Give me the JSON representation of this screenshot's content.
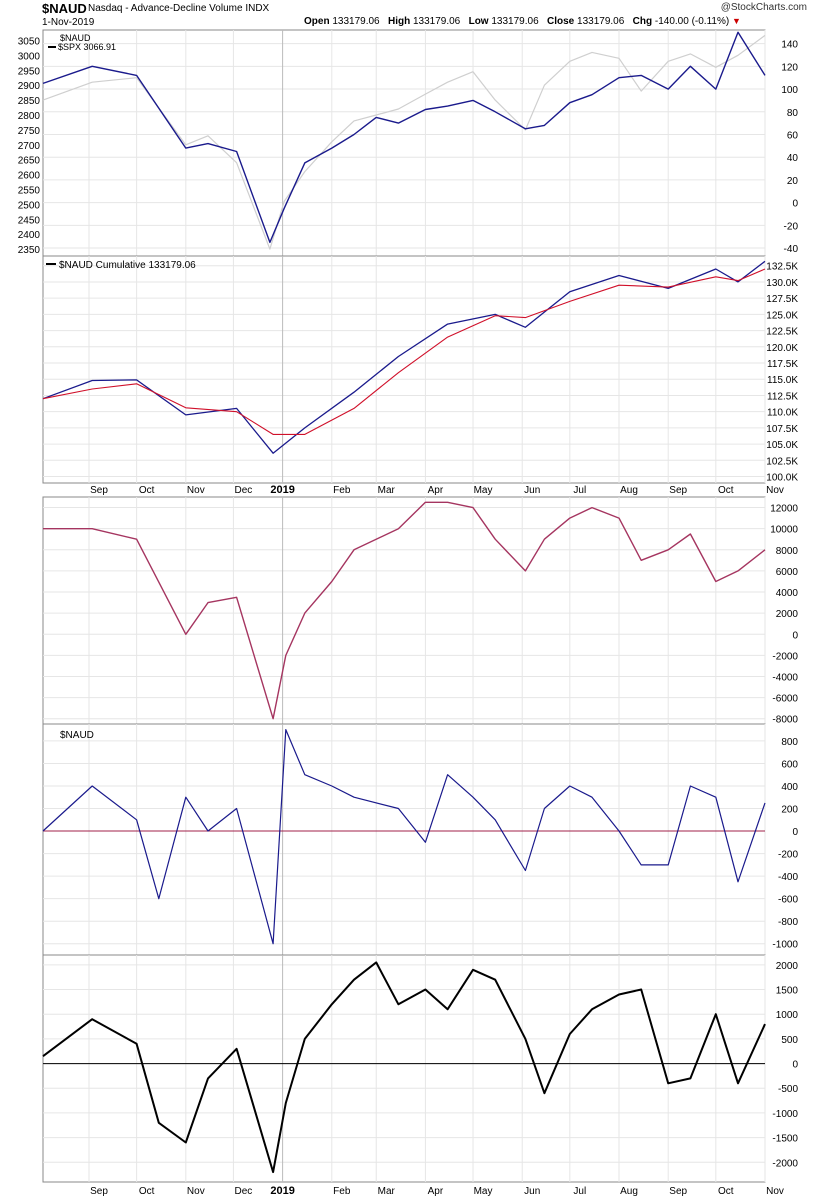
{
  "header": {
    "symbol": "$NAUD",
    "name": "Nasdaq - Advance-Decline Volume",
    "exchange": "INDX",
    "date": "1-Nov-2019",
    "open_label": "Open",
    "open_value": "133179.06",
    "high_label": "High",
    "high_value": "133179.06",
    "low_label": "Low",
    "low_value": "133179.06",
    "close_label": "Close",
    "close_value": "133179.06",
    "chg_label": "Chg",
    "chg_value": "-140.00 (-0.11%)",
    "brand": "@StockCharts.com"
  },
  "colors": {
    "navy": "#1a1a8c",
    "spx_gray": "#cfcfcf",
    "ma_red": "#d0102a",
    "maroon": "#a53560",
    "zero_line": "#a0204a",
    "black": "#000000",
    "grid": "#e6e6e6"
  },
  "x_axis": {
    "labels": [
      "Sep",
      "Oct",
      "Nov",
      "Dec",
      "2019",
      "Feb",
      "Mar",
      "Apr",
      "May",
      "Jun",
      "Jul",
      "Aug",
      "Sep",
      "Oct",
      "Nov"
    ],
    "bold_index": 4
  },
  "chart_data": [
    {
      "type": "line",
      "legend": [
        "$NAUD",
        "$SPX 3066.91"
      ],
      "x": [
        "2018-08-03",
        "2018-09-03",
        "2018-10-01",
        "2018-11-01",
        "2018-11-15",
        "2018-12-03",
        "2018-12-24",
        "2019-01-02",
        "2019-01-15",
        "2019-02-01",
        "2019-02-15",
        "2019-03-01",
        "2019-03-15",
        "2019-04-01",
        "2019-04-15",
        "2019-05-01",
        "2019-05-15",
        "2019-06-03",
        "2019-06-15",
        "2019-07-01",
        "2019-07-15",
        "2019-08-01",
        "2019-08-15",
        "2019-09-01",
        "2019-09-15",
        "2019-10-01",
        "2019-10-15",
        "2019-11-01"
      ],
      "series": [
        {
          "name": "$NAUD",
          "axis": "right",
          "values": [
            105,
            120,
            112,
            48,
            52,
            45,
            -35,
            -5,
            35,
            48,
            60,
            75,
            70,
            82,
            85,
            90,
            80,
            65,
            68,
            88,
            95,
            110,
            112,
            100,
            120,
            100,
            150,
            112
          ]
        },
        {
          "name": "$SPX 3066.91",
          "axis": "left",
          "values": [
            2850,
            2910,
            2925,
            2700,
            2730,
            2640,
            2350,
            2510,
            2610,
            2710,
            2780,
            2800,
            2820,
            2870,
            2910,
            2945,
            2850,
            2750,
            2900,
            2980,
            3010,
            2990,
            2880,
            2980,
            3005,
            2960,
            3000,
            3067
          ]
        }
      ],
      "y_left": {
        "ticks": [
          2350,
          2400,
          2450,
          2500,
          2550,
          2600,
          2650,
          2700,
          2750,
          2800,
          2850,
          2900,
          2950,
          3000,
          3050
        ]
      },
      "y_right": {
        "ticks": [
          -40,
          -20,
          0,
          20,
          40,
          60,
          80,
          100,
          120,
          140
        ]
      }
    },
    {
      "type": "line",
      "legend": [
        "$NAUD Cumulative 133179.06"
      ],
      "x": [
        "2018-08-03",
        "2018-09-03",
        "2018-10-01",
        "2018-11-01",
        "2018-12-03",
        "2018-12-26",
        "2019-01-15",
        "2019-02-15",
        "2019-03-15",
        "2019-04-15",
        "2019-05-15",
        "2019-06-03",
        "2019-07-01",
        "2019-08-01",
        "2019-09-01",
        "2019-10-01",
        "2019-10-15",
        "2019-11-01"
      ],
      "series": [
        {
          "name": "$NAUD Cumulative",
          "values": [
            112000,
            114800,
            114900,
            109500,
            110500,
            103600,
            107500,
            113000,
            118500,
            123500,
            125000,
            123000,
            128500,
            131000,
            129000,
            132000,
            130000,
            133179
          ]
        },
        {
          "name": "moving average",
          "values": [
            112000,
            113500,
            114300,
            110600,
            110000,
            106500,
            106500,
            110500,
            116000,
            121500,
            124800,
            124500,
            127000,
            129500,
            129200,
            130800,
            130200,
            132000
          ]
        }
      ],
      "y_right": {
        "ticks": [
          "100.0K",
          "102.5K",
          "105.0K",
          "107.5K",
          "110.0K",
          "112.5K",
          "115.0K",
          "117.5K",
          "120.0K",
          "122.5K",
          "125.0K",
          "127.5K",
          "130.0K",
          "132.5K"
        ]
      }
    },
    {
      "type": "line",
      "x": [
        "2018-08-03",
        "2018-09-03",
        "2018-10-01",
        "2018-11-01",
        "2018-11-15",
        "2018-12-03",
        "2018-12-26",
        "2019-01-03",
        "2019-01-15",
        "2019-02-01",
        "2019-02-15",
        "2019-03-15",
        "2019-04-01",
        "2019-04-15",
        "2019-05-01",
        "2019-05-15",
        "2019-06-03",
        "2019-06-15",
        "2019-07-01",
        "2019-07-15",
        "2019-08-01",
        "2019-08-15",
        "2019-09-01",
        "2019-09-15",
        "2019-10-01",
        "2019-10-15",
        "2019-11-01"
      ],
      "series": [
        {
          "name": "values",
          "values": [
            10000,
            10000,
            9000,
            0,
            3000,
            3500,
            -8000,
            -2000,
            2000,
            5000,
            8000,
            10000,
            12500,
            12500,
            12000,
            9000,
            6000,
            9000,
            11000,
            12000,
            11000,
            7000,
            8000,
            9500,
            5000,
            6000,
            8000
          ]
        }
      ],
      "y_right": {
        "ticks": [
          -8000,
          -6000,
          -4000,
          -2000,
          0,
          2000,
          4000,
          6000,
          8000,
          10000,
          12000
        ]
      }
    },
    {
      "type": "line",
      "legend": [
        "$NAUD"
      ],
      "x": [
        "2018-08-03",
        "2018-09-03",
        "2018-10-01",
        "2018-10-15",
        "2018-11-01",
        "2018-11-15",
        "2018-12-03",
        "2018-12-26",
        "2019-01-03",
        "2019-01-15",
        "2019-02-01",
        "2019-02-15",
        "2019-03-15",
        "2019-04-01",
        "2019-04-15",
        "2019-05-01",
        "2019-05-15",
        "2019-06-03",
        "2019-06-15",
        "2019-07-01",
        "2019-07-15",
        "2019-08-01",
        "2019-08-15",
        "2019-09-01",
        "2019-09-15",
        "2019-10-01",
        "2019-10-15",
        "2019-11-01"
      ],
      "series": [
        {
          "name": "$NAUD",
          "values": [
            0,
            400,
            100,
            -600,
            300,
            0,
            200,
            -1000,
            900,
            500,
            400,
            300,
            200,
            -100,
            500,
            300,
            100,
            -350,
            200,
            400,
            300,
            0,
            -300,
            -300,
            400,
            300,
            -450,
            250
          ]
        }
      ],
      "reference_line": 0,
      "y_right": {
        "ticks": [
          -1000,
          -800,
          -600,
          -400,
          -200,
          0,
          200,
          400,
          600,
          800
        ]
      }
    },
    {
      "type": "line",
      "x": [
        "2018-08-03",
        "2018-09-03",
        "2018-10-01",
        "2018-10-15",
        "2018-11-01",
        "2018-11-15",
        "2018-12-03",
        "2018-12-26",
        "2019-01-03",
        "2019-01-15",
        "2019-02-01",
        "2019-02-15",
        "2019-03-01",
        "2019-03-15",
        "2019-04-01",
        "2019-04-15",
        "2019-05-01",
        "2019-05-15",
        "2019-06-03",
        "2019-06-15",
        "2019-07-01",
        "2019-07-15",
        "2019-08-01",
        "2019-08-15",
        "2019-09-01",
        "2019-09-15",
        "2019-10-01",
        "2019-10-15",
        "2019-11-01"
      ],
      "series": [
        {
          "name": "oscillator",
          "values": [
            150,
            900,
            400,
            -1200,
            -1600,
            -300,
            300,
            -2200,
            -800,
            500,
            1200,
            1700,
            2050,
            1200,
            1500,
            1100,
            1900,
            1700,
            500,
            -600,
            600,
            1100,
            1400,
            1500,
            -400,
            -300,
            1000,
            -400,
            800
          ]
        }
      ],
      "reference_line": 0,
      "y_right": {
        "ticks": [
          -2000,
          -1500,
          -1000,
          -500,
          0,
          500,
          1000,
          1500,
          2000
        ]
      }
    }
  ]
}
